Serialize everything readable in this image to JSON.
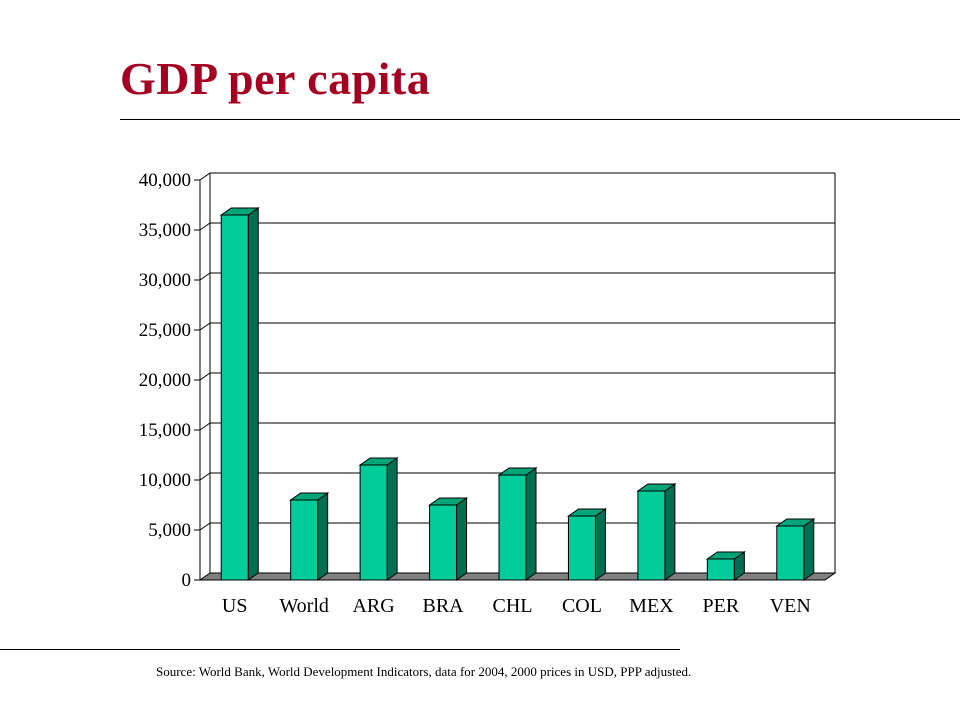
{
  "title": "GDP per capita",
  "source_note": "Source:  World Bank, World Development Indicators, data for 2004, 2000 prices in USD, PPP adjusted.",
  "colors": {
    "title": "#a50021",
    "bar_front": "#00cc99",
    "bar_top": "#00a57a",
    "bar_side": "#006e52",
    "floor": "#808080",
    "gridline": "#000000"
  },
  "chart_data": {
    "type": "bar",
    "style": "3d-column",
    "categories": [
      "US",
      "World",
      "ARG",
      "BRA",
      "CHL",
      "COL",
      "MEX",
      "PER",
      "VEN"
    ],
    "values": [
      36500,
      8000,
      11500,
      7500,
      10500,
      6400,
      8900,
      2100,
      5400
    ],
    "ylim": [
      0,
      40000
    ],
    "yticks": [
      0,
      5000,
      10000,
      15000,
      20000,
      25000,
      30000,
      35000,
      40000
    ],
    "ytick_labels": [
      "0",
      "5,000",
      "10,000",
      "15,000",
      "20,000",
      "25,000",
      "30,000",
      "35,000",
      "40,000"
    ],
    "grid": true,
    "legend": "none"
  }
}
